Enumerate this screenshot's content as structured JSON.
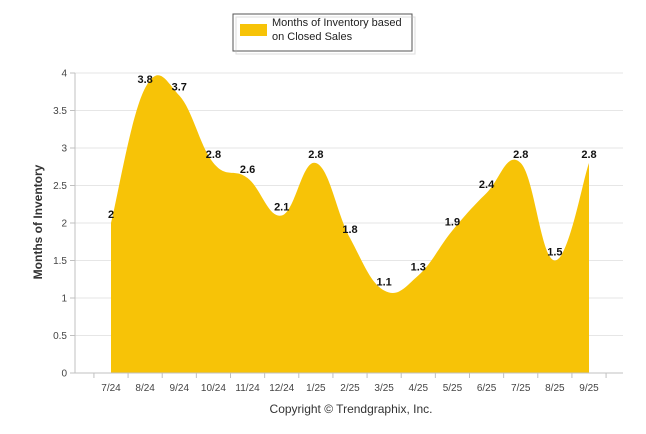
{
  "chart_data": {
    "type": "area",
    "categories": [
      "7/24",
      "8/24",
      "9/24",
      "10/24",
      "11/24",
      "12/24",
      "1/25",
      "2/25",
      "3/25",
      "4/25",
      "5/25",
      "6/25",
      "7/25",
      "8/25",
      "9/25"
    ],
    "series": [
      {
        "name": "Months of Inventory based on Closed Sales",
        "values": [
          2,
          3.8,
          3.7,
          2.8,
          2.6,
          2.1,
          2.8,
          1.8,
          1.1,
          1.3,
          1.9,
          2.4,
          2.8,
          1.5,
          2.8
        ],
        "labels": [
          "2",
          "3.8",
          "3.7",
          "2.8",
          "2.6",
          "2.1",
          "2.8",
          "1.8",
          "1.1",
          "1.3",
          "1.9",
          "2.4",
          "2.8",
          "1.5",
          "2.8"
        ],
        "color": "#F7C307"
      }
    ],
    "legend": {
      "line1": "Months of Inventory based",
      "line2": "on Closed Sales",
      "placement": "top-center"
    },
    "ylabel": "Months of Inventory",
    "xlabel": "",
    "ylim": [
      0,
      4
    ],
    "yticks": [
      "0",
      "0.5",
      "1",
      "1.5",
      "2",
      "2.5",
      "3",
      "3.5",
      "4"
    ],
    "grid": true
  },
  "footer": {
    "credit": "Copyright © Trendgraphix, Inc."
  },
  "colors": {
    "fill": "#F7C307",
    "grid": "#e6e6e6",
    "axis": "#c0c0c0"
  }
}
